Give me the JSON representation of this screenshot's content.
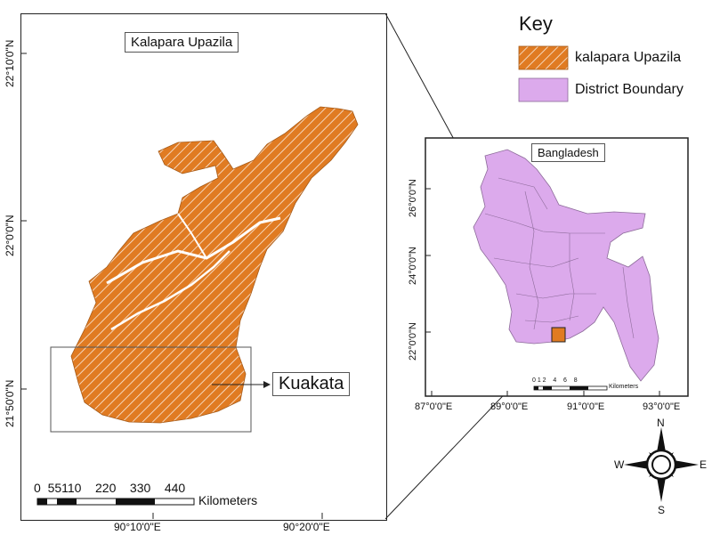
{
  "main_map": {
    "title": "Kalapara Upazila",
    "lat_ticks": [
      "22°10'0\"N",
      "22°0'0\"N",
      "21°50'0\"N"
    ],
    "lon_ticks": [
      "90°10'0\"E",
      "90°20'0\"E"
    ],
    "callout": "Kuakata",
    "scale_numbers": "0  55110    220    330    440",
    "scale_unit": "Kilometers"
  },
  "inset_map": {
    "title": "Bangladesh",
    "lat_ticks": [
      "26°0'0\"N",
      "24°0'0\"N",
      "22°0'0\"N"
    ],
    "lon_ticks": [
      "87°0'0\"E",
      "89°0'0\"E",
      "91°0'0\"E",
      "93°0'0\"E"
    ],
    "scale_numbers": "0 1 2    4    6    8",
    "scale_unit": "Kilometers"
  },
  "key": {
    "title": "Key",
    "items": [
      {
        "label": "kalapara Upazila",
        "color": "#e07b22"
      },
      {
        "label": "District Boundary",
        "color": "#dcaaec"
      }
    ]
  },
  "north_arrow": {
    "n": "N",
    "s": "S",
    "e": "E",
    "w": "W"
  }
}
